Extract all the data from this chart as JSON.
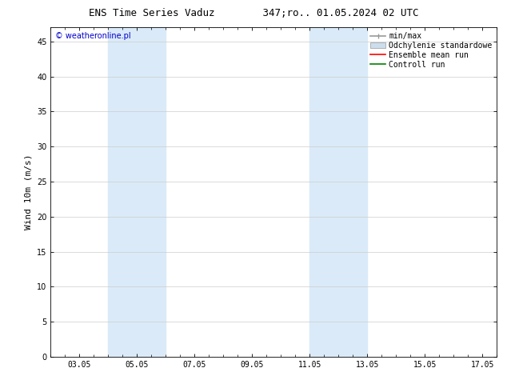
{
  "title_left": "ENS Time Series Vaduz",
  "title_right": "347;ro.. 01.05.2024 02 UTC",
  "ylabel": "Wind 10m (m/s)",
  "watermark": "© weatheronline.pl",
  "xlim": [
    2.0,
    17.5
  ],
  "ylim": [
    0,
    47
  ],
  "yticks": [
    0,
    5,
    10,
    15,
    20,
    25,
    30,
    35,
    40,
    45
  ],
  "xtick_labels": [
    "03.05",
    "05.05",
    "07.05",
    "09.05",
    "11.05",
    "13.05",
    "15.05",
    "17.05"
  ],
  "xtick_positions": [
    3.0,
    5.0,
    7.0,
    9.0,
    11.0,
    13.0,
    15.0,
    17.0
  ],
  "shaded_regions": [
    {
      "xmin": 4.0,
      "xmax": 6.0,
      "color": "#daeaf8"
    },
    {
      "xmin": 11.0,
      "xmax": 13.0,
      "color": "#daeaf8"
    }
  ],
  "legend_entries": [
    {
      "label": "min/max",
      "color": "#999999",
      "lw": 1.2,
      "style": "line_with_caps"
    },
    {
      "label": "Odchylenie standardowe",
      "color": "#ccdded",
      "lw": 8,
      "style": "thick"
    },
    {
      "label": "Ensemble mean run",
      "color": "red",
      "lw": 1.2,
      "style": "line"
    },
    {
      "label": "Controll run",
      "color": "green",
      "lw": 1.2,
      "style": "line"
    }
  ],
  "bg_color": "#ffffff",
  "plot_bg_color": "#ffffff",
  "grid_color": "#cccccc",
  "title_fontsize": 9,
  "tick_fontsize": 7,
  "ylabel_fontsize": 8,
  "legend_fontsize": 7,
  "watermark_color": "#0000cc",
  "watermark_fontsize": 7
}
